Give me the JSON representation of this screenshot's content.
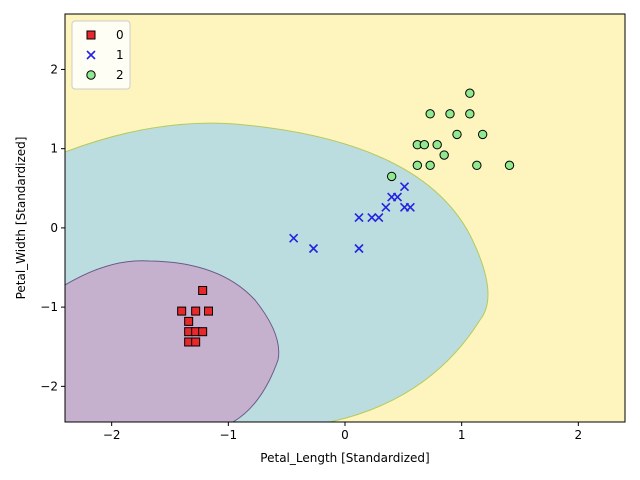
{
  "chart_data": {
    "type": "scatter",
    "title": "",
    "xlabel": "Petal_Length [Standardized]",
    "ylabel": "Petal_Width [Standardized]",
    "xlim": [
      -2.4,
      2.4
    ],
    "ylim": [
      -2.45,
      2.7
    ],
    "x_ticks": [
      -2,
      -1,
      0,
      1,
      2
    ],
    "y_ticks": [
      -2,
      -1,
      0,
      1,
      2
    ],
    "grid": false,
    "legend_position": "top-left",
    "decision_regions": [
      {
        "class": "0",
        "color": "#c5b1cd"
      },
      {
        "class": "1",
        "color": "#bcdddf"
      },
      {
        "class": "2",
        "color": "#fdf5bd"
      }
    ],
    "series": [
      {
        "name": "0",
        "marker": "square",
        "color": "#e8282b",
        "points": [
          [
            -1.22,
            -0.79
          ],
          [
            -1.4,
            -1.05
          ],
          [
            -1.28,
            -1.05
          ],
          [
            -1.17,
            -1.05
          ],
          [
            -1.34,
            -1.18
          ],
          [
            -1.34,
            -1.31
          ],
          [
            -1.28,
            -1.31
          ],
          [
            -1.22,
            -1.31
          ],
          [
            -1.34,
            -1.44
          ],
          [
            -1.28,
            -1.44
          ]
        ]
      },
      {
        "name": "1",
        "marker": "x",
        "color": "#2424e0",
        "points": [
          [
            -0.44,
            -0.13
          ],
          [
            -0.27,
            -0.26
          ],
          [
            0.12,
            -0.26
          ],
          [
            0.12,
            0.13
          ],
          [
            0.23,
            0.13
          ],
          [
            0.29,
            0.13
          ],
          [
            0.35,
            0.26
          ],
          [
            0.4,
            0.39
          ],
          [
            0.45,
            0.39
          ],
          [
            0.51,
            0.26
          ],
          [
            0.56,
            0.26
          ],
          [
            0.51,
            0.52
          ]
        ]
      },
      {
        "name": "2",
        "marker": "circle",
        "color": "#90e88f",
        "points": [
          [
            0.4,
            0.65
          ],
          [
            0.62,
            0.79
          ],
          [
            0.73,
            0.79
          ],
          [
            1.13,
            0.79
          ],
          [
            1.41,
            0.79
          ],
          [
            0.85,
            0.92
          ],
          [
            0.62,
            1.05
          ],
          [
            0.68,
            1.05
          ],
          [
            0.79,
            1.05
          ],
          [
            0.96,
            1.18
          ],
          [
            1.18,
            1.18
          ],
          [
            0.73,
            1.44
          ],
          [
            0.9,
            1.44
          ],
          [
            1.07,
            1.44
          ],
          [
            1.07,
            1.7
          ]
        ]
      }
    ]
  }
}
